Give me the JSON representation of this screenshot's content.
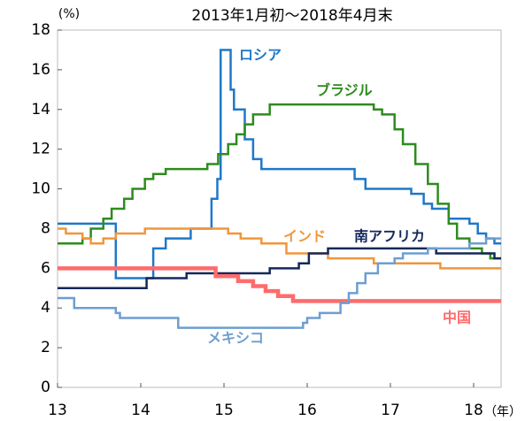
{
  "chart_data": {
    "type": "step-line",
    "title": "2013年1月初～2018年4月末",
    "y_unit": "(%)",
    "x_unit": "（年）",
    "xlim": [
      13,
      18.33
    ],
    "xticks": [
      13,
      14,
      15,
      16,
      17,
      18
    ],
    "ylim": [
      0,
      18
    ],
    "yticks": [
      0,
      2,
      4,
      6,
      8,
      10,
      12,
      14,
      16,
      18
    ],
    "grid": false,
    "series": [
      {
        "name": "ロシア",
        "color": "#1f78c8",
        "x": [
          13,
          13.7,
          14.15,
          14.3,
          14.6,
          14.85,
          14.92,
          14.96,
          15.08,
          15.12,
          15.25,
          15.35,
          15.45,
          16.57,
          16.7,
          17.25,
          17.4,
          17.5,
          17.7,
          17.95,
          18.05,
          18.15,
          18.25
        ],
        "values": [
          8.25,
          5.5,
          7,
          7.5,
          8,
          9.5,
          10.5,
          17,
          15,
          14,
          12.5,
          11.5,
          11,
          10.5,
          10,
          9.75,
          9.25,
          9,
          8.5,
          8.25,
          7.75,
          7.5,
          7.25
        ]
      },
      {
        "name": "ブラジル",
        "color": "#2e8b1e",
        "x": [
          13,
          13.3,
          13.4,
          13.55,
          13.65,
          13.8,
          13.9,
          14.05,
          14.15,
          14.3,
          14.8,
          14.93,
          15.05,
          15.15,
          15.25,
          15.35,
          15.55,
          16.8,
          16.9,
          17.05,
          17.15,
          17.3,
          17.45,
          17.57,
          17.7,
          17.8,
          17.95,
          18.1,
          18.2
        ],
        "values": [
          7.25,
          7.5,
          8,
          8.5,
          9,
          9.5,
          10,
          10.5,
          10.75,
          11,
          11.25,
          11.75,
          12.25,
          12.75,
          13.25,
          13.75,
          14.25,
          14,
          13.75,
          13,
          12.25,
          11.25,
          10.25,
          9.25,
          8.25,
          7.5,
          7,
          6.75,
          6.5
        ]
      },
      {
        "name": "インド",
        "color": "#f0963c",
        "x": [
          13,
          13.1,
          13.3,
          13.4,
          13.55,
          13.7,
          14.05,
          15.05,
          15.2,
          15.45,
          15.75,
          16.25,
          16.8,
          17.6
        ],
        "values": [
          8,
          7.75,
          7.5,
          7.25,
          7.5,
          7.75,
          8,
          7.75,
          7.5,
          7.25,
          6.75,
          6.5,
          6.25,
          6
        ]
      },
      {
        "name": "南アフリカ",
        "color": "#14285a",
        "x": [
          13,
          14.07,
          14.55,
          15.55,
          15.9,
          16.02,
          16.25,
          17.55,
          18.25
        ],
        "values": [
          5,
          5.5,
          5.75,
          6,
          6.25,
          6.75,
          7,
          6.75,
          6.5
        ]
      },
      {
        "name": "中国",
        "color": "#ff6b6b",
        "x": [
          13,
          14.9,
          15.17,
          15.35,
          15.5,
          15.65,
          15.83
        ],
        "values": [
          6,
          5.6,
          5.35,
          5.1,
          4.85,
          4.6,
          4.35
        ]
      },
      {
        "name": "メキシコ",
        "color": "#6d9ed0",
        "x": [
          13,
          13.2,
          13.7,
          13.75,
          14.45,
          15.95,
          16,
          16.15,
          16.4,
          16.5,
          16.6,
          16.7,
          16.85,
          17.05,
          17.15,
          17.45,
          17.95,
          18.15
        ],
        "values": [
          4.5,
          4,
          3.75,
          3.5,
          3,
          3.25,
          3.5,
          3.75,
          4.25,
          4.75,
          5.25,
          5.75,
          6.25,
          6.5,
          6.75,
          7,
          7.25,
          7.5
        ]
      }
    ]
  }
}
